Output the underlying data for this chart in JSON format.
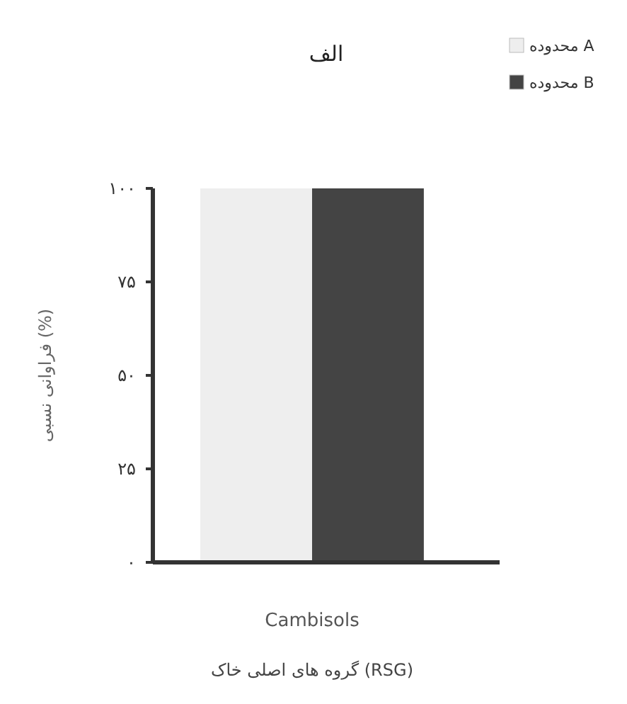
{
  "chart_data": {
    "type": "bar",
    "title": "الف",
    "xlabel": "Cambisols",
    "ylabel": "فراوانی نسبی (%)",
    "annotations": [
      "گروه های اصلی خاک (RSG)"
    ],
    "categories": [
      null
    ],
    "series": [
      {
        "name": "محدوده A",
        "color": "#eeeeee",
        "values": [
          100
        ]
      },
      {
        "name": "محدوده B",
        "color": "#444444",
        "values": [
          100
        ]
      }
    ],
    "ylim": [
      0,
      100
    ],
    "yticks": [
      {
        "value": 0,
        "label": "۰"
      },
      {
        "value": 25,
        "label": "۲۵"
      },
      {
        "value": 50,
        "label": "۵۰"
      },
      {
        "value": 75,
        "label": "۷۵"
      },
      {
        "value": 100,
        "label": "۱۰۰"
      }
    ],
    "legend": "top right",
    "grid": false
  }
}
